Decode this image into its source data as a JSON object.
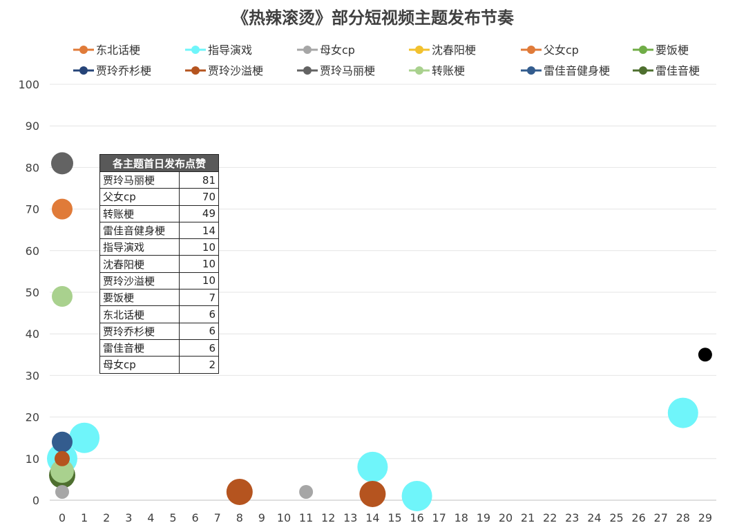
{
  "chart_data": {
    "type": "scatter",
    "subtype": "bubble",
    "title": "《热辣滚烫》部分短视频主题发布节奏",
    "xlabel": "",
    "ylabel": "",
    "xlim": [
      0,
      29
    ],
    "ylim": [
      0,
      100
    ],
    "x_ticks": [
      0,
      1,
      2,
      3,
      4,
      5,
      6,
      7,
      8,
      9,
      10,
      11,
      12,
      13,
      14,
      15,
      16,
      17,
      18,
      19,
      20,
      21,
      22,
      23,
      24,
      25,
      26,
      27,
      28,
      29
    ],
    "y_ticks": [
      0,
      10,
      20,
      30,
      40,
      50,
      60,
      70,
      80,
      90,
      100
    ],
    "grid": "horizontal",
    "legend_position": "top",
    "series": [
      {
        "name": "东北话梗",
        "color": "#E07B39",
        "points": []
      },
      {
        "name": "指导演戏",
        "color": "#6FF5FA",
        "points": [
          {
            "x": 0,
            "y": 10,
            "size": 22
          },
          {
            "x": 1,
            "y": 15,
            "size": 22
          },
          {
            "x": 14,
            "y": 8,
            "size": 22
          },
          {
            "x": 16,
            "y": 1,
            "size": 22
          },
          {
            "x": 28,
            "y": 21,
            "size": 22
          }
        ]
      },
      {
        "name": "母女cp",
        "color": "#A6A6A6",
        "points": [
          {
            "x": 0,
            "y": 2,
            "size": 10
          },
          {
            "x": 11,
            "y": 2,
            "size": 10
          }
        ]
      },
      {
        "name": "沈春阳梗",
        "color": "#F2C12E",
        "points": []
      },
      {
        "name": "父女cp",
        "color": "#E07B39",
        "points": [
          {
            "x": 0,
            "y": 70,
            "size": 15
          }
        ]
      },
      {
        "name": "要饭梗",
        "color": "#70AD47",
        "points": []
      },
      {
        "name": "贾玲乔杉梗",
        "color": "#264478",
        "points": []
      },
      {
        "name": "贾玲沙溢梗",
        "color": "#B5541F",
        "points": [
          {
            "x": 0,
            "y": 10,
            "size": 11
          },
          {
            "x": 8,
            "y": 2,
            "size": 19
          },
          {
            "x": 14,
            "y": 1.5,
            "size": 19
          }
        ]
      },
      {
        "name": "贾玲马丽梗",
        "color": "#636363",
        "points": [
          {
            "x": 0,
            "y": 81,
            "size": 16
          }
        ]
      },
      {
        "name": "转账梗",
        "color": "#A9D18E",
        "points": [
          {
            "x": 0,
            "y": 49,
            "size": 15
          },
          {
            "x": 0,
            "y": 7,
            "size": 17
          }
        ]
      },
      {
        "name": "雷佳音健身梗",
        "color": "#335C8E",
        "points": [
          {
            "x": 0,
            "y": 14,
            "size": 15
          }
        ]
      },
      {
        "name": "雷佳音梗",
        "color": "#4E6F2F",
        "points": [
          {
            "x": 0,
            "y": 6,
            "size": 19
          }
        ]
      },
      {
        "name": "",
        "color": "#000000",
        "points": [
          {
            "x": 29,
            "y": 35,
            "size": 10
          }
        ]
      }
    ],
    "table": {
      "header": "各主题首日发布点赞",
      "rows": [
        {
          "name": "贾玲马丽梗",
          "value": "81"
        },
        {
          "name": "父女cp",
          "value": "70"
        },
        {
          "name": "转账梗",
          "value": "49"
        },
        {
          "name": "雷佳音健身梗",
          "value": "14"
        },
        {
          "name": "指导演戏",
          "value": "10"
        },
        {
          "name": "沈春阳梗",
          "value": "10"
        },
        {
          "name": "贾玲沙溢梗",
          "value": "10"
        },
        {
          "name": "要饭梗",
          "value": "7"
        },
        {
          "name": "东北话梗",
          "value": "6"
        },
        {
          "name": "贾玲乔杉梗",
          "value": "6"
        },
        {
          "name": "雷佳音梗",
          "value": "6"
        },
        {
          "name": "母女cp",
          "value": "2"
        }
      ]
    }
  }
}
